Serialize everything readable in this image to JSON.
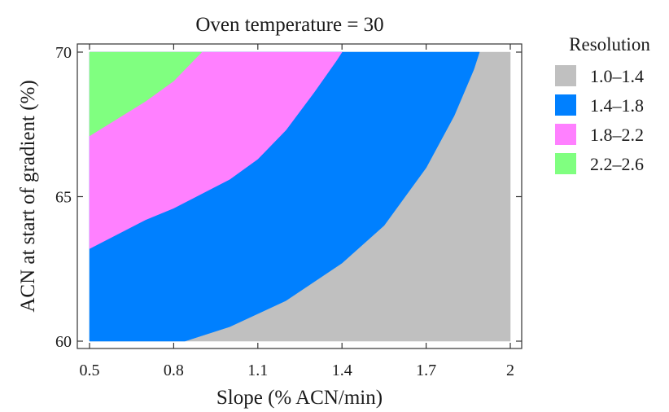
{
  "chart_data": {
    "type": "area",
    "title": "Oven temperature = 30",
    "xlabel": "Slope (% ACN/min)",
    "ylabel": "ACN at start of gradient (%)",
    "xlim": [
      0.5,
      2.0
    ],
    "ylim": [
      60,
      70
    ],
    "x_ticks": [
      0.5,
      0.8,
      1.1,
      1.4,
      1.7,
      2.0
    ],
    "x_tick_labels": [
      "0.5",
      "0.8",
      "1.1",
      "1.4",
      "1.7",
      "2"
    ],
    "y_ticks": [
      60,
      65,
      70
    ],
    "y_tick_labels": [
      "60",
      "65",
      "70"
    ],
    "grid": false,
    "legend": {
      "title": "Resolution",
      "placement": "right"
    },
    "series": [
      {
        "name": "1.0–1.4",
        "color": "#c0c0c0",
        "boundary": []
      },
      {
        "name": "1.4–1.8",
        "color": "#0080ff",
        "boundary": [
          [
            0.84,
            60.0
          ],
          [
            1.0,
            60.5
          ],
          [
            1.2,
            61.4
          ],
          [
            1.4,
            62.7
          ],
          [
            1.55,
            64.0
          ],
          [
            1.7,
            66.0
          ],
          [
            1.8,
            67.8
          ],
          [
            1.87,
            69.4
          ],
          [
            1.89,
            70.0
          ]
        ]
      },
      {
        "name": "1.8–2.2",
        "color": "#ff80ff",
        "boundary": [
          [
            0.5,
            63.2
          ],
          [
            0.6,
            63.7
          ],
          [
            0.7,
            64.2
          ],
          [
            0.8,
            64.6
          ],
          [
            0.9,
            65.1
          ],
          [
            1.0,
            65.6
          ],
          [
            1.1,
            66.3
          ],
          [
            1.2,
            67.3
          ],
          [
            1.3,
            68.6
          ],
          [
            1.38,
            69.7
          ],
          [
            1.4,
            70.0
          ]
        ]
      },
      {
        "name": "2.2–2.6",
        "color": "#80ff80",
        "boundary": [
          [
            0.5,
            67.1
          ],
          [
            0.6,
            67.7
          ],
          [
            0.7,
            68.3
          ],
          [
            0.8,
            69.0
          ],
          [
            0.9,
            70.0
          ]
        ]
      }
    ]
  }
}
